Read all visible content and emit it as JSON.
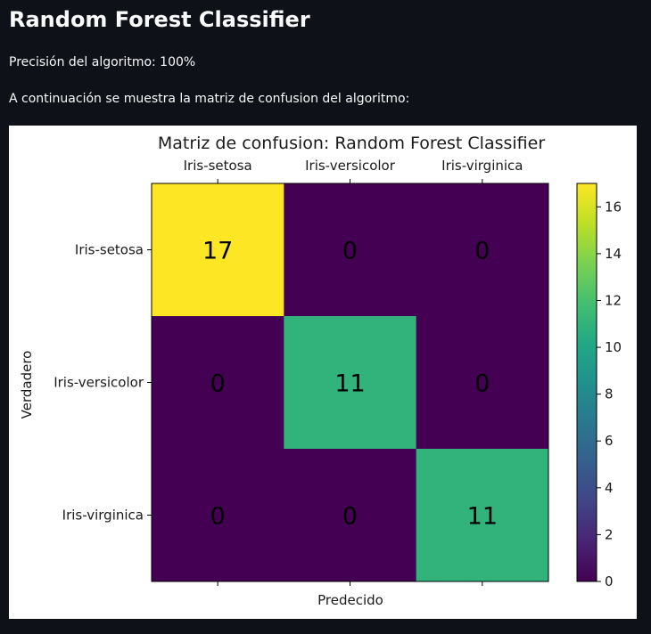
{
  "page": {
    "title": "Random Forest Classifier",
    "accuracy_text": "Precisión del algoritmo: 100%",
    "intro_text": "A continuación se muestra la matriz de confusion del algoritmo:"
  },
  "chart_data": {
    "type": "heatmap",
    "title": "Matriz de confusion: Random Forest Classifier",
    "xlabel": "Predecido",
    "ylabel": "Verdadero",
    "x_categories": [
      "Iris-setosa",
      "Iris-versicolor",
      "Iris-virginica"
    ],
    "y_categories": [
      "Iris-setosa",
      "Iris-versicolor",
      "Iris-virginica"
    ],
    "x_axis_position": "top",
    "values": [
      [
        17,
        0,
        0
      ],
      [
        0,
        11,
        0
      ],
      [
        0,
        0,
        11
      ]
    ],
    "colormap": "viridis",
    "colorbar": {
      "range": [
        0,
        17
      ],
      "ticks": [
        0,
        2,
        4,
        6,
        8,
        10,
        12,
        14,
        16
      ]
    },
    "grid": false
  }
}
